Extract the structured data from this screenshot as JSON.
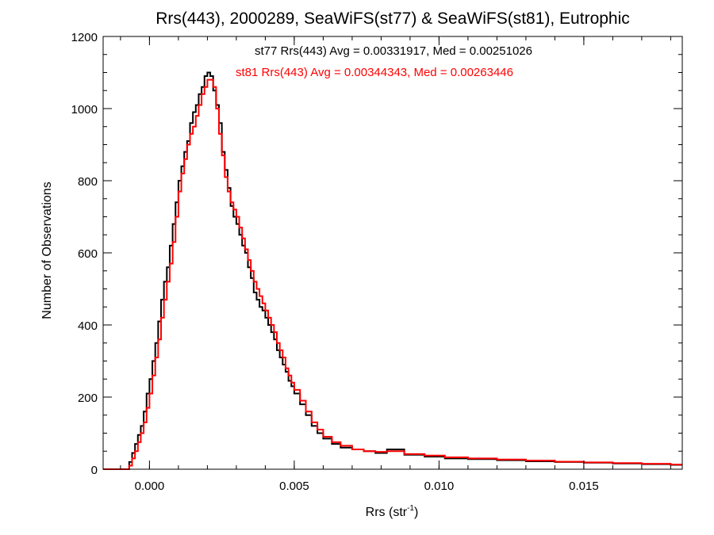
{
  "chart_data": {
    "type": "line",
    "step": true,
    "title": "Rrs(443), 2000289, SeaWiFS(st77) & SeaWiFS(st81), Eutrophic",
    "xlabel_main": "Rrs (str",
    "xlabel_sup": "-1",
    "xlabel_end": ")",
    "ylabel": "Number of Observations",
    "xlim": [
      -0.0016,
      0.0184
    ],
    "ylim": [
      0,
      1200
    ],
    "xticks": [
      0.0,
      0.005,
      0.01,
      0.015
    ],
    "xtick_labels": [
      "0.000",
      "0.005",
      "0.010",
      "0.015"
    ],
    "yticks": [
      0,
      200,
      400,
      600,
      800,
      1000,
      1200
    ],
    "ytick_labels": [
      "0",
      "200",
      "400",
      "600",
      "800",
      "1000",
      "1200"
    ],
    "x_minor_step": 0.001,
    "y_minor_step": 50,
    "grid": false,
    "annotations": [
      {
        "text": "st77 Rrs(443) Avg = 0.00331917, Med = 0.00251026",
        "color": "#000000"
      },
      {
        "text": "st81 Rrs(443) Avg = 0.00344343, Med = 0.00263446",
        "color": "#ff0000"
      }
    ],
    "series": [
      {
        "color": "#000000",
        "x": [
          -0.0016,
          -0.0008,
          -0.0007,
          -0.0006,
          -0.0005,
          -0.0004,
          -0.0003,
          -0.0002,
          -0.0001,
          0.0,
          0.0001,
          0.0002,
          0.0003,
          0.0004,
          0.0005,
          0.0006,
          0.0007,
          0.0008,
          0.0009,
          0.001,
          0.0011,
          0.0012,
          0.0013,
          0.0014,
          0.0015,
          0.0016,
          0.0017,
          0.0018,
          0.0019,
          0.002,
          0.0021,
          0.0022,
          0.0023,
          0.0024,
          0.0025,
          0.0026,
          0.0027,
          0.0028,
          0.0029,
          0.003,
          0.0031,
          0.0032,
          0.0033,
          0.0034,
          0.0035,
          0.0036,
          0.0037,
          0.0038,
          0.0039,
          0.004,
          0.0041,
          0.0042,
          0.0043,
          0.0044,
          0.0045,
          0.0046,
          0.0047,
          0.0048,
          0.0049,
          0.005,
          0.0052,
          0.0054,
          0.0056,
          0.0058,
          0.006,
          0.0063,
          0.0066,
          0.007,
          0.0074,
          0.0078,
          0.0082,
          0.0088,
          0.0095,
          0.0102,
          0.011,
          0.012,
          0.013,
          0.014,
          0.015,
          0.016,
          0.017,
          0.018,
          0.0184
        ],
        "y": [
          0,
          0,
          20,
          45,
          70,
          95,
          120,
          160,
          210,
          250,
          300,
          350,
          410,
          470,
          520,
          560,
          620,
          680,
          740,
          800,
          840,
          880,
          910,
          960,
          990,
          1010,
          1040,
          1060,
          1090,
          1100,
          1090,
          1050,
          1010,
          960,
          880,
          830,
          780,
          730,
          700,
          680,
          650,
          620,
          600,
          560,
          530,
          490,
          470,
          450,
          440,
          420,
          400,
          380,
          360,
          330,
          310,
          290,
          270,
          245,
          230,
          210,
          180,
          150,
          120,
          100,
          85,
          70,
          60,
          55,
          50,
          45,
          55,
          40,
          35,
          30,
          28,
          25,
          22,
          20,
          18,
          16,
          14,
          12,
          12
        ]
      },
      {
        "color": "#ff0000",
        "x": [
          -0.0016,
          -0.0008,
          -0.0007,
          -0.0006,
          -0.0005,
          -0.0004,
          -0.0003,
          -0.0002,
          -0.0001,
          0.0,
          0.0001,
          0.0002,
          0.0003,
          0.0004,
          0.0005,
          0.0006,
          0.0007,
          0.0008,
          0.0009,
          0.001,
          0.0011,
          0.0012,
          0.0013,
          0.0014,
          0.0015,
          0.0016,
          0.0017,
          0.0018,
          0.0019,
          0.002,
          0.0021,
          0.0022,
          0.0023,
          0.0024,
          0.0025,
          0.0026,
          0.0027,
          0.0028,
          0.0029,
          0.003,
          0.0031,
          0.0032,
          0.0033,
          0.0034,
          0.0035,
          0.0036,
          0.0037,
          0.0038,
          0.0039,
          0.004,
          0.0041,
          0.0042,
          0.0043,
          0.0044,
          0.0045,
          0.0046,
          0.0047,
          0.0048,
          0.0049,
          0.005,
          0.0052,
          0.0054,
          0.0056,
          0.0058,
          0.006,
          0.0063,
          0.0066,
          0.007,
          0.0074,
          0.0078,
          0.0082,
          0.0088,
          0.0095,
          0.0102,
          0.011,
          0.012,
          0.013,
          0.014,
          0.015,
          0.016,
          0.017,
          0.018,
          0.0184
        ],
        "y": [
          0,
          0,
          10,
          30,
          50,
          75,
          100,
          130,
          170,
          210,
          260,
          310,
          360,
          420,
          470,
          520,
          570,
          630,
          700,
          770,
          820,
          860,
          900,
          930,
          950,
          980,
          1010,
          1040,
          1060,
          1080,
          1080,
          1060,
          1000,
          930,
          870,
          810,
          770,
          740,
          720,
          700,
          670,
          640,
          610,
          580,
          550,
          520,
          500,
          480,
          460,
          440,
          420,
          400,
          380,
          350,
          330,
          310,
          280,
          260,
          240,
          220,
          190,
          160,
          130,
          110,
          90,
          75,
          65,
          55,
          50,
          48,
          50,
          42,
          38,
          33,
          30,
          27,
          24,
          21,
          19,
          17,
          15,
          13,
          13
        ]
      }
    ]
  }
}
